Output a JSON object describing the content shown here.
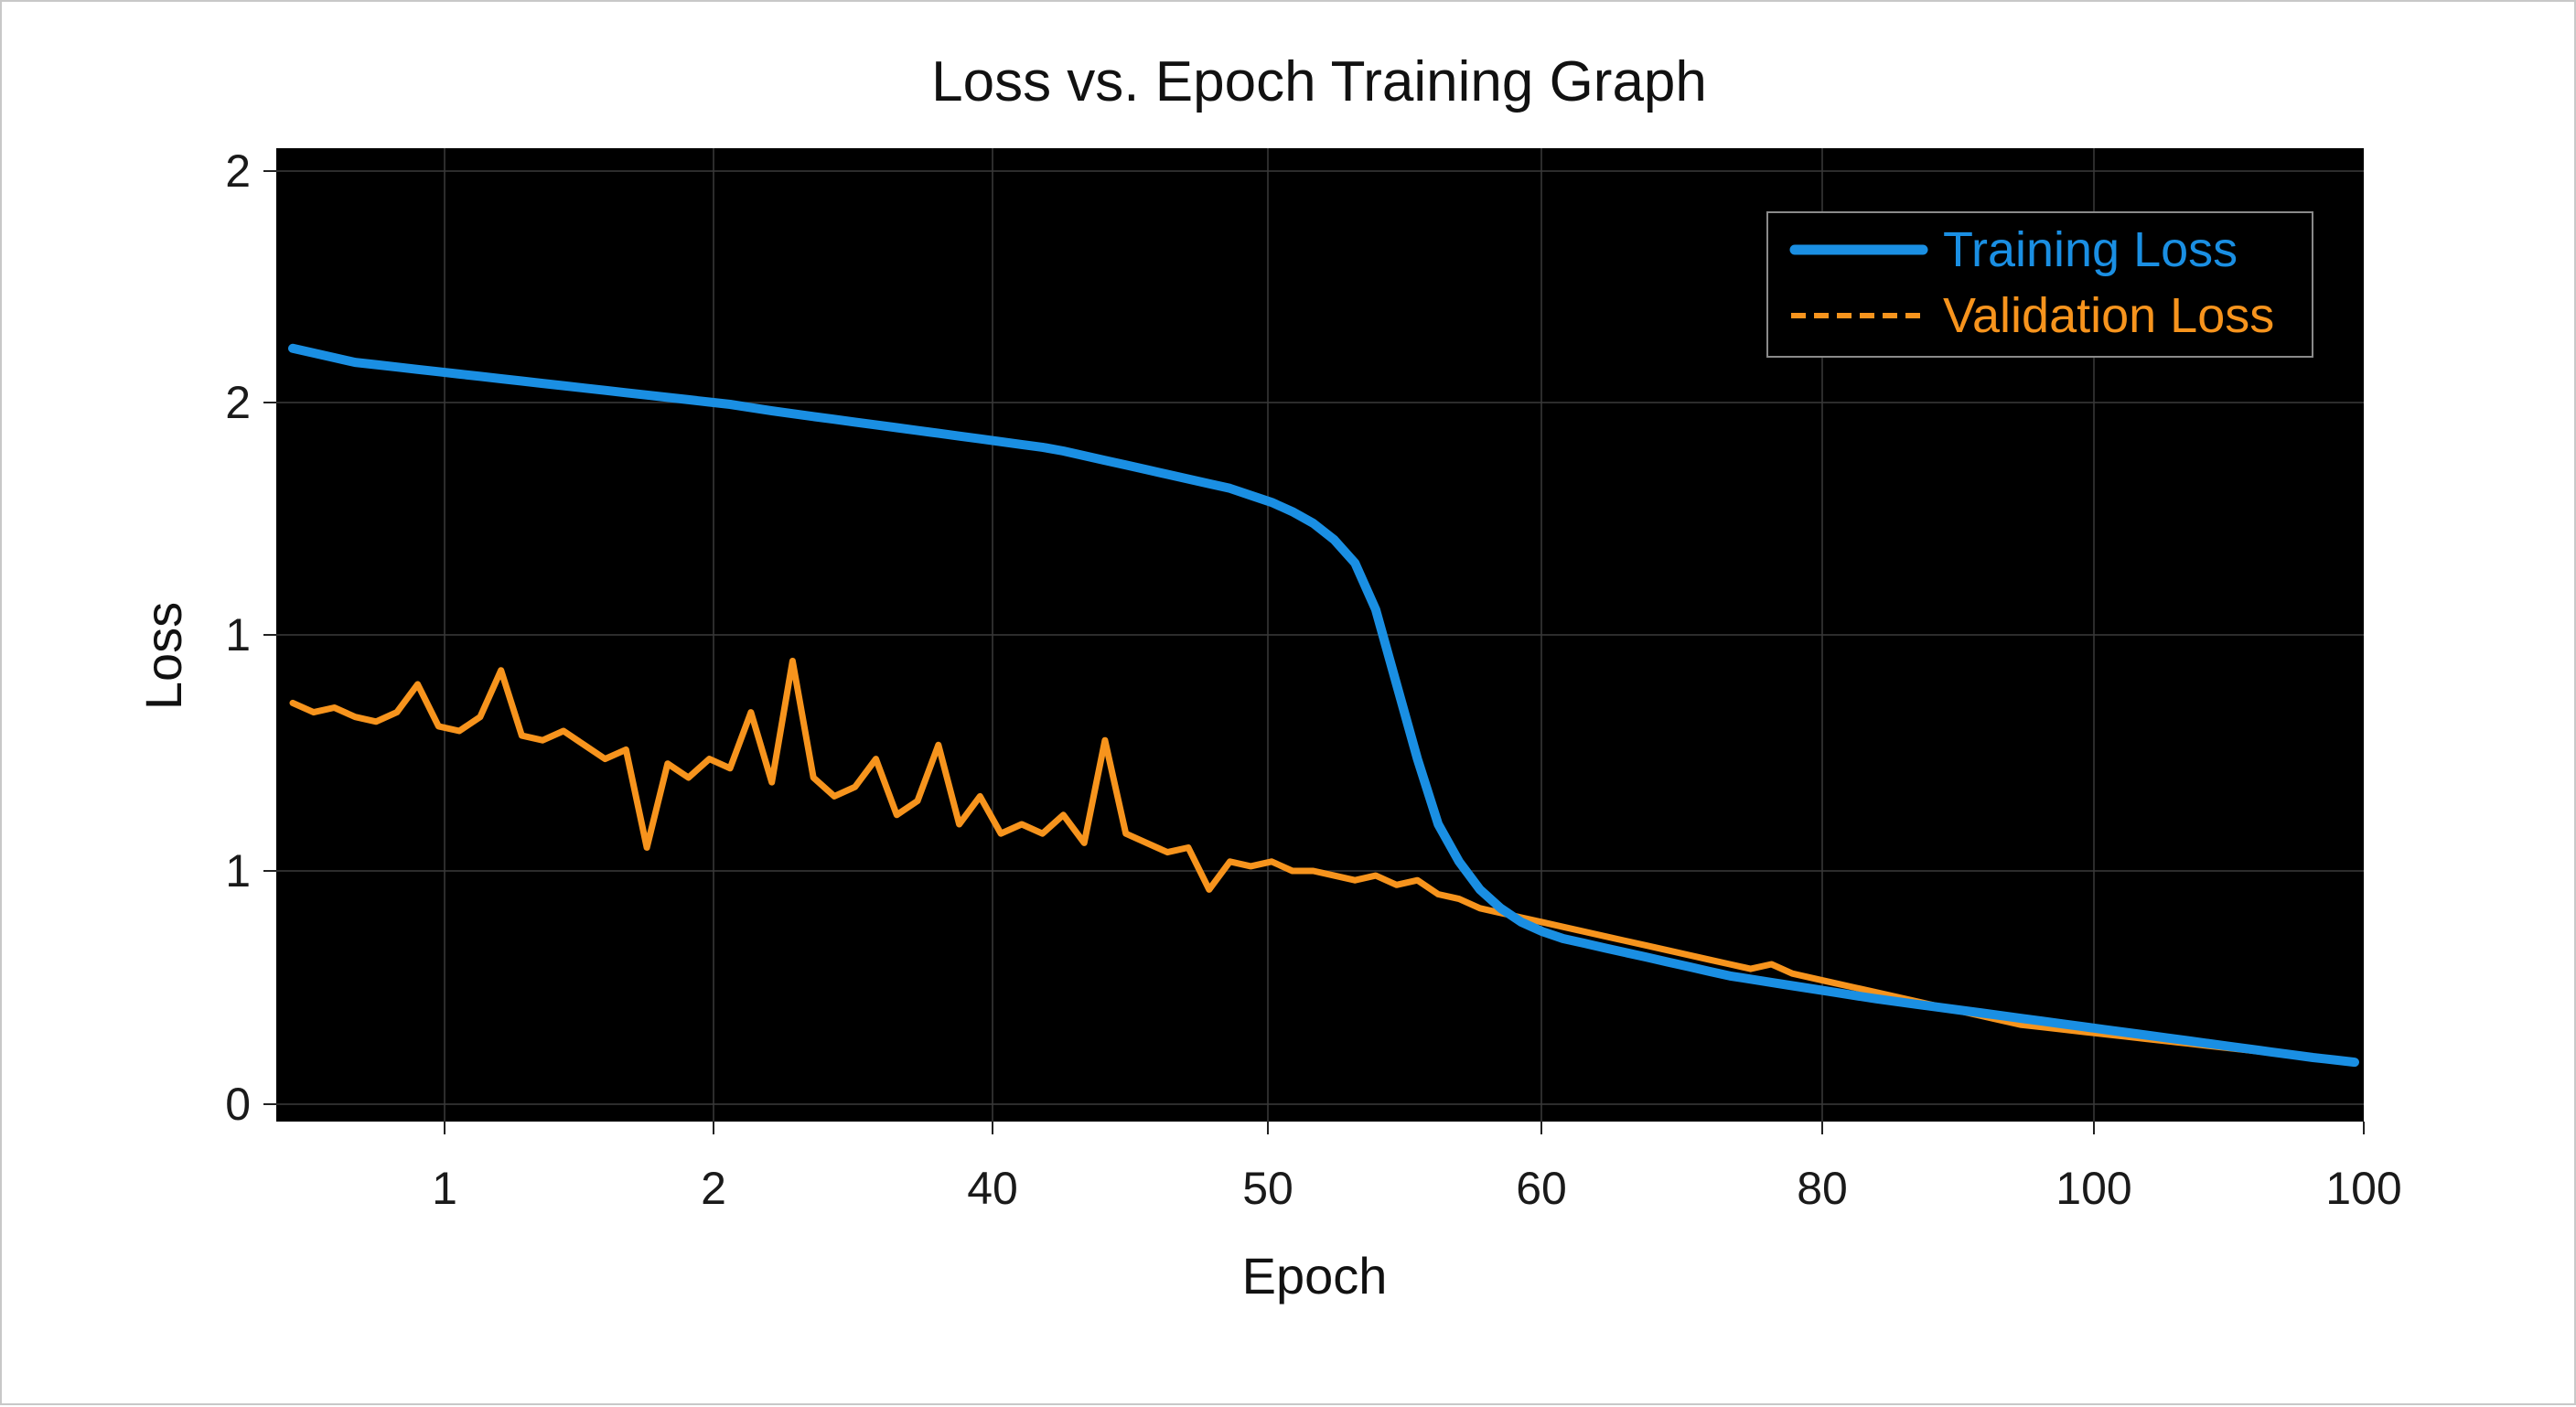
{
  "chart_data": {
    "type": "line",
    "title": "Loss vs. Epoch Training Graph",
    "xlabel": "Epoch",
    "ylabel": "Loss",
    "x_tick_labels": [
      "1",
      "2",
      "40",
      "50",
      "60",
      "80",
      "100",
      "100"
    ],
    "y_tick_labels": [
      "0",
      "1",
      "1",
      "2",
      "2"
    ],
    "xlim": [
      0,
      100
    ],
    "ylim": [
      0,
      2
    ],
    "grid": true,
    "background": "#000000",
    "legend_position": "top-right",
    "series": [
      {
        "name": "Training Loss",
        "color": "#1a8fe3",
        "style": "solid",
        "x": [
          1,
          2,
          3,
          4,
          5,
          6,
          7,
          8,
          9,
          10,
          11,
          12,
          13,
          14,
          15,
          16,
          17,
          18,
          19,
          20,
          21,
          22,
          23,
          24,
          25,
          26,
          27,
          28,
          29,
          30,
          31,
          32,
          33,
          34,
          35,
          36,
          37,
          38,
          39,
          40,
          41,
          42,
          43,
          44,
          45,
          46,
          47,
          48,
          49,
          50,
          51,
          52,
          53,
          54,
          55,
          56,
          57,
          58,
          59,
          60,
          61,
          62,
          63,
          64,
          65,
          66,
          67,
          68,
          69,
          70,
          71,
          72,
          73,
          74,
          75,
          76,
          77,
          78,
          79,
          80,
          81,
          82,
          83,
          84,
          85,
          86,
          87,
          88,
          89,
          90,
          91,
          92,
          93,
          94,
          95,
          96,
          97,
          98,
          99,
          100
        ],
        "y": [
          1.62,
          1.61,
          1.6,
          1.59,
          1.585,
          1.58,
          1.575,
          1.57,
          1.565,
          1.56,
          1.555,
          1.55,
          1.545,
          1.54,
          1.535,
          1.53,
          1.525,
          1.52,
          1.515,
          1.51,
          1.505,
          1.5,
          1.493,
          1.486,
          1.48,
          1.474,
          1.468,
          1.462,
          1.456,
          1.45,
          1.444,
          1.438,
          1.432,
          1.426,
          1.42,
          1.414,
          1.408,
          1.4,
          1.39,
          1.38,
          1.37,
          1.36,
          1.35,
          1.34,
          1.33,
          1.32,
          1.305,
          1.29,
          1.27,
          1.245,
          1.21,
          1.16,
          1.06,
          0.9,
          0.74,
          0.6,
          0.52,
          0.46,
          0.42,
          0.39,
          0.37,
          0.355,
          0.345,
          0.335,
          0.325,
          0.315,
          0.305,
          0.295,
          0.285,
          0.275,
          0.268,
          0.261,
          0.254,
          0.247,
          0.24,
          0.233,
          0.226,
          0.22,
          0.214,
          0.208,
          0.202,
          0.196,
          0.19,
          0.184,
          0.178,
          0.172,
          0.166,
          0.16,
          0.154,
          0.148,
          0.142,
          0.136,
          0.13,
          0.124,
          0.118,
          0.112,
          0.106,
          0.1,
          0.095,
          0.09
        ]
      },
      {
        "name": "Validation Loss",
        "color": "#f7941d",
        "style": "dashed",
        "x": [
          1,
          2,
          3,
          4,
          5,
          6,
          7,
          8,
          9,
          10,
          11,
          12,
          13,
          14,
          15,
          16,
          17,
          18,
          19,
          20,
          21,
          22,
          23,
          24,
          25,
          26,
          27,
          28,
          29,
          30,
          31,
          32,
          33,
          34,
          35,
          36,
          37,
          38,
          39,
          40,
          41,
          42,
          43,
          44,
          45,
          46,
          47,
          48,
          49,
          50,
          51,
          52,
          53,
          54,
          55,
          56,
          57,
          58,
          59,
          60,
          61,
          62,
          63,
          64,
          65,
          66,
          67,
          68,
          69,
          70,
          71,
          72,
          73,
          74,
          75,
          76,
          77,
          78,
          79,
          80,
          81,
          82,
          83,
          84,
          85,
          86,
          87,
          88,
          89,
          90,
          91,
          92,
          93,
          94,
          95,
          96,
          97,
          98,
          99,
          100
        ],
        "y": [
          0.86,
          0.84,
          0.85,
          0.83,
          0.82,
          0.84,
          0.9,
          0.81,
          0.8,
          0.83,
          0.93,
          0.79,
          0.78,
          0.8,
          0.77,
          0.74,
          0.76,
          0.55,
          0.73,
          0.7,
          0.74,
          0.72,
          0.84,
          0.69,
          0.95,
          0.7,
          0.66,
          0.68,
          0.74,
          0.62,
          0.65,
          0.77,
          0.6,
          0.66,
          0.58,
          0.6,
          0.58,
          0.62,
          0.56,
          0.78,
          0.58,
          0.56,
          0.54,
          0.55,
          0.46,
          0.52,
          0.51,
          0.52,
          0.5,
          0.5,
          0.49,
          0.48,
          0.49,
          0.47,
          0.48,
          0.45,
          0.44,
          0.42,
          0.41,
          0.4,
          0.39,
          0.38,
          0.37,
          0.36,
          0.35,
          0.34,
          0.33,
          0.32,
          0.31,
          0.3,
          0.29,
          0.3,
          0.28,
          0.27,
          0.26,
          0.25,
          0.24,
          0.23,
          0.22,
          0.21,
          0.2,
          0.19,
          0.18,
          0.17,
          0.165,
          0.16,
          0.155,
          0.15,
          0.145,
          0.14,
          0.135,
          0.13,
          0.125,
          0.12,
          0.115,
          0.11,
          0.105,
          0.1,
          0.095,
          0.09
        ]
      }
    ]
  }
}
